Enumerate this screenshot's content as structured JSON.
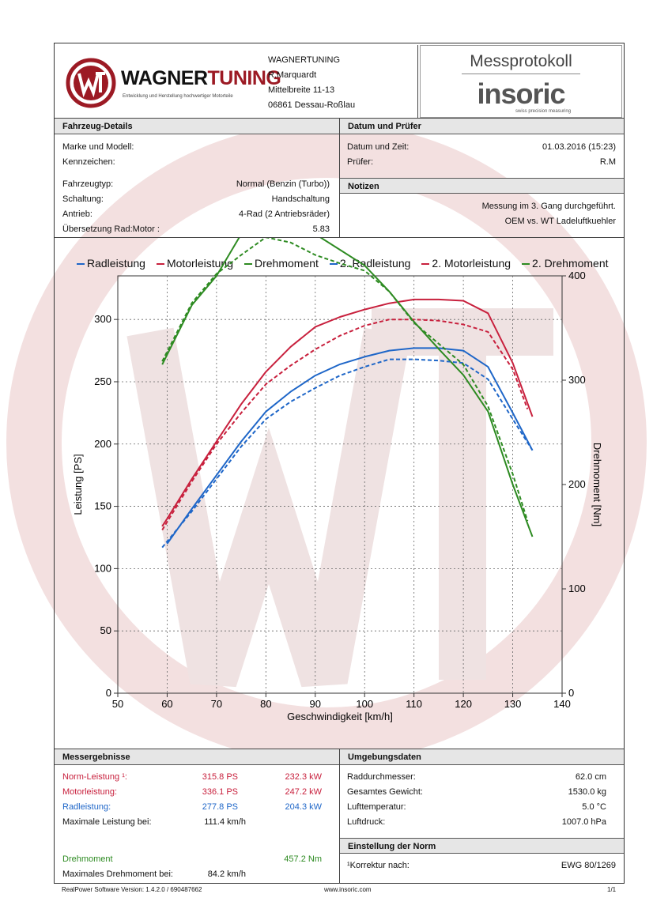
{
  "header": {
    "company_logo_name": "WAGNERTUNING",
    "company_logo_wagner": "WAGNER",
    "company_logo_tuning": "TUNING",
    "company_tagline": "Entwicklung und Herstellung hochwertiger Motorteile",
    "address": [
      "WAGNERTUNING",
      "R.Marquardt",
      "Mittelbreite 11-13",
      "06861 Dessau-Roßlau"
    ],
    "protocol_title": "Messprotokoll",
    "brand_insoric": "insoric",
    "brand_tagline": "swiss precision measuring"
  },
  "vehicle": {
    "title": "Fahrzeug-Details",
    "rows": [
      {
        "label": "Marke und Modell:",
        "value": ""
      },
      {
        "label": "Kennzeichen:",
        "value": ""
      },
      {
        "label": "Fahrzeugtyp:",
        "value": "Normal (Benzin (Turbo))"
      },
      {
        "label": "Schaltung:",
        "value": "Handschaltung"
      },
      {
        "label": "Antrieb:",
        "value": "4-Rad (2 Antriebsräder)"
      },
      {
        "label": "Übersetzung Rad:Motor :",
        "value": "5.83"
      }
    ]
  },
  "date": {
    "title": "Datum und Prüfer",
    "rows": [
      {
        "label": "Datum und Zeit:",
        "value": "01.03.2016 (15:23)"
      },
      {
        "label": "Prüfer:",
        "value": "R.M"
      }
    ]
  },
  "notes": {
    "title": "Notizen",
    "lines": [
      "Messung im 3. Gang durchgeführt.",
      "OEM vs. WT Ladeluftkuehler"
    ]
  },
  "results": {
    "title": "Messergebnisse",
    "norm": {
      "label": "Norm-Leistung ¹:",
      "ps": "315.8 PS",
      "kw": "232.3 kW"
    },
    "motor": {
      "label": "Motorleistung:",
      "ps": "336.1 PS",
      "kw": "247.2 kW"
    },
    "rad": {
      "label": "Radleistung:",
      "ps": "277.8 PS",
      "kw": "204.3 kW"
    },
    "max_power": {
      "label": "Maximale Leistung bei:",
      "value": "111.4 km/h"
    },
    "torque": {
      "label": "Drehmoment",
      "value": "457.2 Nm"
    },
    "max_torque": {
      "label": "Maximales Drehmoment bei:",
      "value": "84.2 km/h"
    }
  },
  "environment": {
    "title": "Umgebungsdaten",
    "rows": [
      {
        "label": "Raddurchmesser:",
        "value": "62.0 cm"
      },
      {
        "label": "Gesamtes Gewicht:",
        "value": "1530.0 kg"
      },
      {
        "label": "Lufttemperatur:",
        "value": "5.0 °C"
      },
      {
        "label": "Luftdruck:",
        "value": "1007.0 hPa"
      }
    ]
  },
  "norm_setting": {
    "title": "Einstellung der Norm",
    "label": "¹Korrektur nach:",
    "value": "EWG 80/1269"
  },
  "footer": {
    "software": "RealPower Software Version: 1.4.2.0 / 690487662",
    "url": "www.insoric.com",
    "page": "1/1"
  },
  "colors": {
    "blue": "#1e66c8",
    "red": "#c8203d",
    "green": "#2e8b22"
  },
  "chart_data": {
    "type": "line",
    "xlabel": "Geschwindigkeit [km/h]",
    "ylabel": "Leistung [PS]",
    "y2label": "Drehmoment [Nm]",
    "xlim": [
      50,
      140
    ],
    "ylim": [
      0,
      335
    ],
    "y2lim": [
      0,
      400
    ],
    "xticks": [
      50,
      60,
      70,
      80,
      90,
      100,
      110,
      120,
      130,
      140
    ],
    "yticks": [
      0,
      50,
      100,
      150,
      200,
      250,
      300
    ],
    "y2ticks": [
      0,
      100,
      200,
      300,
      400
    ],
    "series": [
      {
        "name": "Radleistung",
        "color": "#1e66c8",
        "dashed": false,
        "axis": "left",
        "x": [
          60,
          65,
          70,
          75,
          80,
          85,
          90,
          95,
          100,
          105,
          110,
          115,
          120,
          125,
          130,
          134
        ],
        "y": [
          120,
          148,
          175,
          202,
          226,
          242,
          255,
          264,
          270,
          275,
          277,
          277,
          275,
          262,
          225,
          195
        ]
      },
      {
        "name": "Motorleistung",
        "color": "#c8203d",
        "dashed": false,
        "axis": "left",
        "x": [
          59,
          60,
          65,
          70,
          75,
          80,
          85,
          90,
          95,
          100,
          105,
          110,
          115,
          120,
          125,
          130,
          134
        ],
        "y": [
          134,
          140,
          172,
          202,
          232,
          258,
          278,
          294,
          302,
          308,
          313,
          316,
          316,
          315,
          305,
          265,
          222
        ]
      },
      {
        "name": "Drehmoment",
        "color": "#2e8b22",
        "dashed": false,
        "axis": "right",
        "x": [
          59,
          65,
          70,
          75,
          80,
          85,
          90,
          95,
          100,
          105,
          110,
          115,
          120,
          125,
          130,
          134
        ],
        "y": [
          315,
          372,
          400,
          440,
          457,
          454,
          440,
          425,
          410,
          385,
          356,
          330,
          305,
          270,
          200,
          150
        ]
      },
      {
        "name": "2. Radleistung",
        "color": "#1e66c8",
        "dashed": true,
        "axis": "left",
        "x": [
          59,
          65,
          70,
          75,
          80,
          85,
          90,
          95,
          100,
          105,
          110,
          115,
          120,
          125,
          130,
          134
        ],
        "y": [
          117,
          146,
          172,
          198,
          220,
          234,
          245,
          255,
          262,
          268,
          268,
          267,
          265,
          252,
          220,
          195
        ]
      },
      {
        "name": "2. Motorleistung",
        "color": "#c8203d",
        "dashed": true,
        "axis": "left",
        "x": [
          59,
          65,
          70,
          75,
          80,
          85,
          90,
          95,
          100,
          105,
          110,
          115,
          120,
          125,
          130,
          133
        ],
        "y": [
          131,
          170,
          200,
          225,
          248,
          263,
          276,
          287,
          295,
          300,
          300,
          299,
          296,
          290,
          260,
          228
        ]
      },
      {
        "name": "2. Drehmoment",
        "color": "#2e8b22",
        "dashed": true,
        "axis": "right",
        "x": [
          59,
          65,
          70,
          75,
          80,
          85,
          90,
          95,
          100,
          105,
          110,
          115,
          120,
          125,
          130,
          133
        ],
        "y": [
          318,
          374,
          402,
          420,
          437,
          432,
          420,
          412,
          405,
          385,
          355,
          335,
          315,
          275,
          210,
          165
        ]
      }
    ]
  }
}
